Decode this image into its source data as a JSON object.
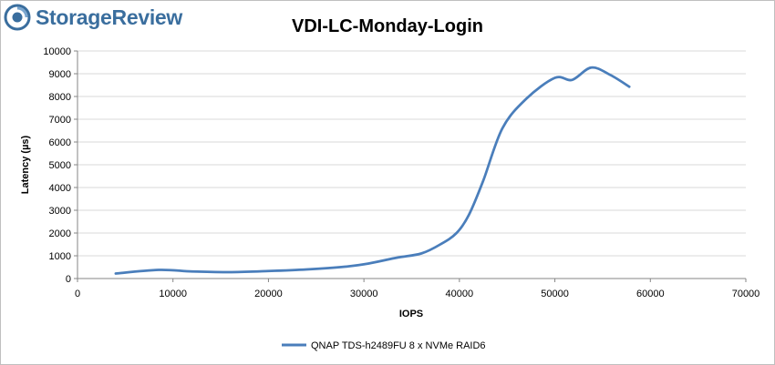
{
  "brand": {
    "name": "StorageReview"
  },
  "colors": {
    "series": "#4a7ebb",
    "grid": "#d9d9d9",
    "brand": "#3a6e9e"
  },
  "chart_data": {
    "type": "line",
    "title": "VDI-LC-Monday-Login",
    "xlabel": "IOPS",
    "ylabel": "Latency (µs)",
    "xlim": [
      0,
      70000
    ],
    "ylim": [
      0,
      10000
    ],
    "xticks": [
      0,
      10000,
      20000,
      30000,
      40000,
      50000,
      60000,
      70000
    ],
    "yticks": [
      0,
      1000,
      2000,
      3000,
      4000,
      5000,
      6000,
      7000,
      8000,
      9000,
      10000
    ],
    "grid": "horizontal",
    "legend": "bottom",
    "series": [
      {
        "name": "QNAP TDS-h2489FU 8 x NVMe RAID6",
        "x": [
          4000,
          8500,
          12000,
          16000,
          20000,
          24000,
          28000,
          30500,
          33500,
          36000,
          38000,
          39700,
          41000,
          42500,
          44500,
          47000,
          50000,
          51800,
          53800,
          55800,
          57800
        ],
        "y": [
          220,
          380,
          310,
          280,
          330,
          400,
          520,
          660,
          920,
          1100,
          1500,
          2000,
          2800,
          4300,
          6600,
          7900,
          8820,
          8730,
          9270,
          8950,
          8430
        ]
      }
    ]
  }
}
